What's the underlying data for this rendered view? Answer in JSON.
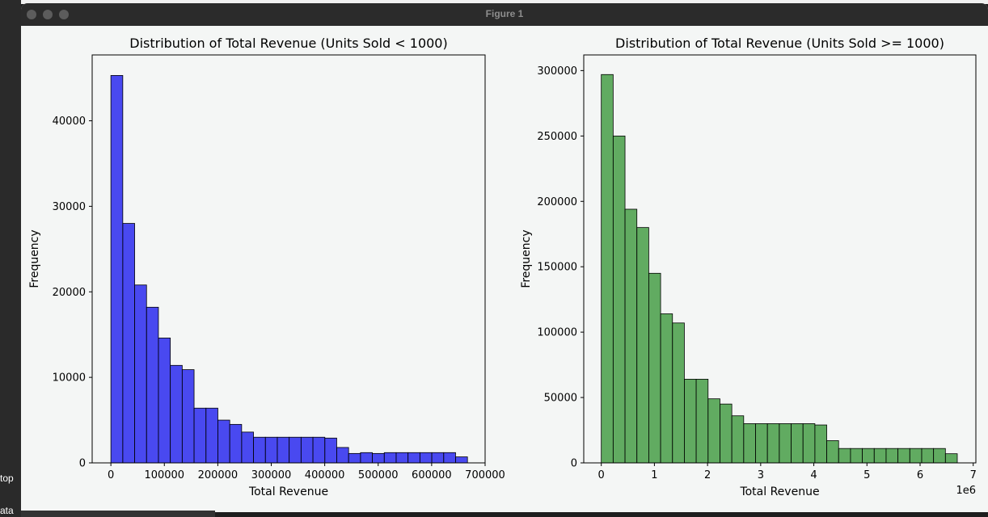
{
  "window": {
    "title": "Figure 1"
  },
  "edge": {
    "label_top": "top",
    "label_data": "ata"
  },
  "chart_data": [
    {
      "type": "histogram",
      "title": "Distribution of Total Revenue (Units Sold < 1000)",
      "xlabel": "Total Revenue",
      "ylabel": "Frequency",
      "color": "#0000ee",
      "xlim": [
        -35000,
        700000
      ],
      "ylim": [
        0,
        47700
      ],
      "xticks": [
        0,
        100000,
        200000,
        300000,
        400000,
        500000,
        600000,
        700000
      ],
      "xtick_labels": [
        "0",
        "100000",
        "200000",
        "300000",
        "400000",
        "500000",
        "600000",
        "700000"
      ],
      "yticks": [
        0,
        10000,
        20000,
        30000,
        40000
      ],
      "ytick_labels": [
        "0",
        "10000",
        "20000",
        "30000",
        "40000"
      ],
      "bin_start": 0,
      "bin_end": 667000,
      "values": [
        45300,
        28000,
        20800,
        18200,
        14600,
        11400,
        10900,
        6400,
        6400,
        5000,
        4500,
        3600,
        3000,
        3000,
        3000,
        3000,
        3000,
        3000,
        2900,
        1800,
        1100,
        1200,
        1100,
        1200,
        1200,
        1200,
        1200,
        1200,
        1200,
        700
      ],
      "offset_label": ""
    },
    {
      "type": "histogram",
      "title": "Distribution of Total Revenue (Units Sold >= 1000)",
      "xlabel": "Total Revenue",
      "ylabel": "Frequency",
      "color": "#228b22",
      "xlim": [
        -0.33,
        7.05
      ],
      "ylim": [
        0,
        312000
      ],
      "xticks": [
        0,
        1,
        2,
        3,
        4,
        5,
        6,
        7
      ],
      "xtick_labels": [
        "0",
        "1",
        "2",
        "3",
        "4",
        "5",
        "6",
        "7"
      ],
      "yticks": [
        0,
        50000,
        100000,
        150000,
        200000,
        250000,
        300000
      ],
      "ytick_labels": [
        "0",
        "50000",
        "100000",
        "150000",
        "200000",
        "250000",
        "300000"
      ],
      "bin_start": 0,
      "bin_end": 6.7,
      "values": [
        297000,
        250000,
        194000,
        180000,
        145000,
        114000,
        107000,
        64000,
        64000,
        49000,
        45000,
        36000,
        30000,
        30000,
        30000,
        30000,
        30000,
        30000,
        29000,
        17000,
        11000,
        11000,
        11000,
        11000,
        11000,
        11000,
        11000,
        11000,
        11000,
        7000
      ],
      "offset_label": "1e6"
    }
  ]
}
